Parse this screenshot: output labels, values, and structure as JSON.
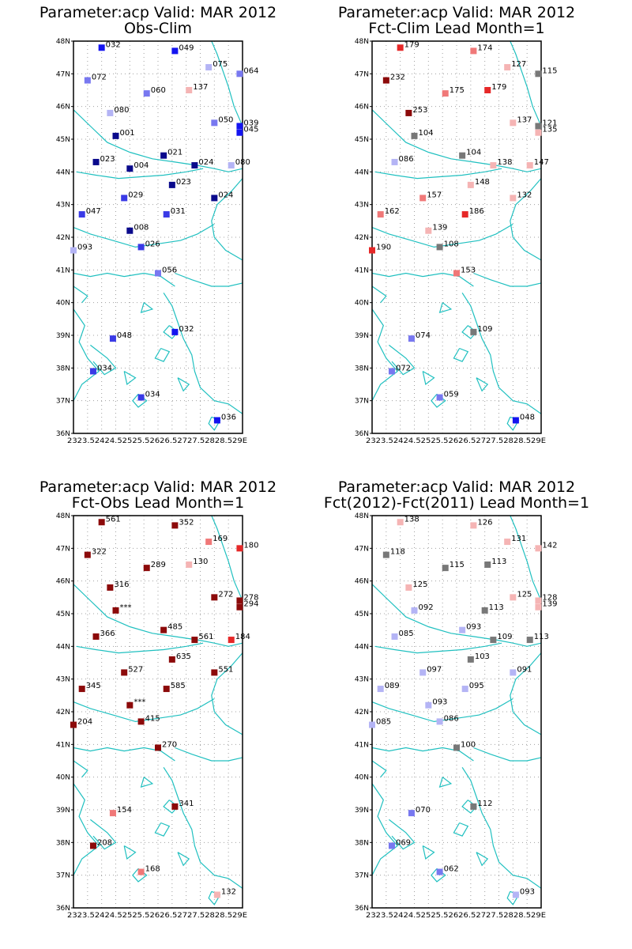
{
  "colors": {
    "coast": "#20c0c0",
    "grid": "#a0a0a0",
    "frame": "#000000",
    "levels": {
      "dark_blue": "#0a0a8c",
      "blue": "#1414f0",
      "mid_blue": "#3a3ae6",
      "light_blue": "#7878f0",
      "pale_blue": "#b4b4f5",
      "gray": "#787878",
      "pale_red": "#f5b4b4",
      "light_red": "#f07878",
      "red": "#e62828",
      "dark_red": "#8c0a0a"
    }
  },
  "axes": {
    "lon_range": [
      23,
      29
    ],
    "lat_range": [
      36,
      48
    ],
    "lat_ticks": [
      "36N",
      "37N",
      "38N",
      "39N",
      "40N",
      "41N",
      "42N",
      "43N",
      "44N",
      "45N",
      "46N",
      "47N",
      "48N"
    ],
    "lon_tick_text": "2323.52424.52525.52626.52727.52828.529E"
  },
  "panels": [
    {
      "title1": "Parameter:acp Valid: MAR 2012",
      "title2": "Obs-Clim",
      "stations": [
        {
          "lon": 24.0,
          "lat": 47.8,
          "label": "032",
          "color": "blue"
        },
        {
          "lon": 26.6,
          "lat": 47.7,
          "label": "049",
          "color": "blue"
        },
        {
          "lon": 27.8,
          "lat": 47.2,
          "label": "075",
          "color": "pale_blue"
        },
        {
          "lon": 28.9,
          "lat": 47.0,
          "label": "064",
          "color": "light_blue"
        },
        {
          "lon": 23.5,
          "lat": 46.8,
          "label": "072",
          "color": "light_blue"
        },
        {
          "lon": 27.1,
          "lat": 46.5,
          "label": "137",
          "color": "pale_red"
        },
        {
          "lon": 25.6,
          "lat": 46.4,
          "label": "060",
          "color": "light_blue"
        },
        {
          "lon": 24.3,
          "lat": 45.8,
          "label": "080",
          "color": "pale_blue"
        },
        {
          "lon": 28.0,
          "lat": 45.5,
          "label": "050",
          "color": "light_blue"
        },
        {
          "lon": 28.9,
          "lat": 45.4,
          "label": "039",
          "color": "blue"
        },
        {
          "lon": 28.9,
          "lat": 45.2,
          "label": "045",
          "color": "blue"
        },
        {
          "lon": 24.5,
          "lat": 45.1,
          "label": "001",
          "color": "dark_blue"
        },
        {
          "lon": 26.2,
          "lat": 44.5,
          "label": "021",
          "color": "dark_blue"
        },
        {
          "lon": 23.8,
          "lat": 44.3,
          "label": "023",
          "color": "dark_blue"
        },
        {
          "lon": 25.0,
          "lat": 44.1,
          "label": "004",
          "color": "dark_blue"
        },
        {
          "lon": 27.3,
          "lat": 44.2,
          "label": "024",
          "color": "dark_blue"
        },
        {
          "lon": 28.6,
          "lat": 44.2,
          "label": "080",
          "color": "pale_blue"
        },
        {
          "lon": 26.5,
          "lat": 43.6,
          "label": "023",
          "color": "dark_blue"
        },
        {
          "lon": 24.8,
          "lat": 43.2,
          "label": "029",
          "color": "mid_blue"
        },
        {
          "lon": 28.0,
          "lat": 43.2,
          "label": "024",
          "color": "dark_blue"
        },
        {
          "lon": 23.3,
          "lat": 42.7,
          "label": "047",
          "color": "mid_blue"
        },
        {
          "lon": 26.3,
          "lat": 42.7,
          "label": "031",
          "color": "mid_blue"
        },
        {
          "lon": 25.0,
          "lat": 42.2,
          "label": "008",
          "color": "dark_blue"
        },
        {
          "lon": 25.4,
          "lat": 41.7,
          "label": "026",
          "color": "mid_blue"
        },
        {
          "lon": 23.0,
          "lat": 41.6,
          "label": "093",
          "color": "pale_blue"
        },
        {
          "lon": 26.0,
          "lat": 40.9,
          "label": "056",
          "color": "light_blue"
        },
        {
          "lon": 26.6,
          "lat": 39.1,
          "label": "032",
          "color": "blue"
        },
        {
          "lon": 24.4,
          "lat": 38.9,
          "label": "048",
          "color": "mid_blue"
        },
        {
          "lon": 23.7,
          "lat": 37.9,
          "label": "034",
          "color": "mid_blue"
        },
        {
          "lon": 25.4,
          "lat": 37.1,
          "label": "034",
          "color": "mid_blue"
        },
        {
          "lon": 28.1,
          "lat": 36.4,
          "label": "036",
          "color": "blue"
        }
      ]
    },
    {
      "title1": "Parameter:acp Valid: MAR 2012",
      "title2": "Fct-Clim Lead Month=1",
      "stations": [
        {
          "lon": 24.0,
          "lat": 47.8,
          "label": "179",
          "color": "red"
        },
        {
          "lon": 26.6,
          "lat": 47.7,
          "label": "174",
          "color": "light_red"
        },
        {
          "lon": 27.8,
          "lat": 47.2,
          "label": "127",
          "color": "pale_red"
        },
        {
          "lon": 28.9,
          "lat": 47.0,
          "label": "115",
          "color": "gray"
        },
        {
          "lon": 23.5,
          "lat": 46.8,
          "label": "232",
          "color": "dark_red"
        },
        {
          "lon": 27.1,
          "lat": 46.5,
          "label": "179",
          "color": "red"
        },
        {
          "lon": 25.6,
          "lat": 46.4,
          "label": "175",
          "color": "light_red"
        },
        {
          "lon": 24.3,
          "lat": 45.8,
          "label": "253",
          "color": "dark_red"
        },
        {
          "lon": 28.0,
          "lat": 45.5,
          "label": "137",
          "color": "pale_red"
        },
        {
          "lon": 28.9,
          "lat": 45.4,
          "label": "121",
          "color": "gray"
        },
        {
          "lon": 28.9,
          "lat": 45.2,
          "label": "135",
          "color": "pale_red"
        },
        {
          "lon": 24.5,
          "lat": 45.1,
          "label": "104",
          "color": "gray"
        },
        {
          "lon": 26.2,
          "lat": 44.5,
          "label": "104",
          "color": "gray"
        },
        {
          "lon": 23.8,
          "lat": 44.3,
          "label": "086",
          "color": "pale_blue"
        },
        {
          "lon": 27.3,
          "lat": 44.2,
          "label": "138",
          "color": "pale_red"
        },
        {
          "lon": 28.6,
          "lat": 44.2,
          "label": "147",
          "color": "pale_red"
        },
        {
          "lon": 26.5,
          "lat": 43.6,
          "label": "148",
          "color": "pale_red"
        },
        {
          "lon": 24.8,
          "lat": 43.2,
          "label": "157",
          "color": "light_red"
        },
        {
          "lon": 28.0,
          "lat": 43.2,
          "label": "132",
          "color": "pale_red"
        },
        {
          "lon": 23.3,
          "lat": 42.7,
          "label": "162",
          "color": "light_red"
        },
        {
          "lon": 26.3,
          "lat": 42.7,
          "label": "186",
          "color": "red"
        },
        {
          "lon": 25.0,
          "lat": 42.2,
          "label": "139",
          "color": "pale_red"
        },
        {
          "lon": 25.4,
          "lat": 41.7,
          "label": "108",
          "color": "gray"
        },
        {
          "lon": 23.0,
          "lat": 41.6,
          "label": "190",
          "color": "red"
        },
        {
          "lon": 26.0,
          "lat": 40.9,
          "label": "153",
          "color": "light_red"
        },
        {
          "lon": 26.6,
          "lat": 39.1,
          "label": "109",
          "color": "gray"
        },
        {
          "lon": 24.4,
          "lat": 38.9,
          "label": "074",
          "color": "light_blue"
        },
        {
          "lon": 23.7,
          "lat": 37.9,
          "label": "072",
          "color": "light_blue"
        },
        {
          "lon": 25.4,
          "lat": 37.1,
          "label": "059",
          "color": "light_blue"
        },
        {
          "lon": 28.1,
          "lat": 36.4,
          "label": "048",
          "color": "blue"
        }
      ]
    },
    {
      "title1": "Parameter:acp Valid: MAR 2012",
      "title2": "Fct-Obs Lead Month=1",
      "stations": [
        {
          "lon": 24.0,
          "lat": 47.8,
          "label": "561",
          "color": "dark_red"
        },
        {
          "lon": 26.6,
          "lat": 47.7,
          "label": "352",
          "color": "dark_red"
        },
        {
          "lon": 27.8,
          "lat": 47.2,
          "label": "169",
          "color": "light_red"
        },
        {
          "lon": 28.9,
          "lat": 47.0,
          "label": "180",
          "color": "red"
        },
        {
          "lon": 23.5,
          "lat": 46.8,
          "label": "322",
          "color": "dark_red"
        },
        {
          "lon": 27.1,
          "lat": 46.5,
          "label": "130",
          "color": "pale_red"
        },
        {
          "lon": 25.6,
          "lat": 46.4,
          "label": "289",
          "color": "dark_red"
        },
        {
          "lon": 24.3,
          "lat": 45.8,
          "label": "316",
          "color": "dark_red"
        },
        {
          "lon": 28.0,
          "lat": 45.5,
          "label": "272",
          "color": "dark_red"
        },
        {
          "lon": 28.9,
          "lat": 45.4,
          "label": "278",
          "color": "dark_red"
        },
        {
          "lon": 28.9,
          "lat": 45.2,
          "label": "294",
          "color": "dark_red"
        },
        {
          "lon": 24.5,
          "lat": 45.1,
          "label": "***",
          "color": "dark_red"
        },
        {
          "lon": 26.2,
          "lat": 44.5,
          "label": "485",
          "color": "dark_red"
        },
        {
          "lon": 23.8,
          "lat": 44.3,
          "label": "366",
          "color": "dark_red"
        },
        {
          "lon": 27.3,
          "lat": 44.2,
          "label": "561",
          "color": "dark_red"
        },
        {
          "lon": 28.6,
          "lat": 44.2,
          "label": "184",
          "color": "red"
        },
        {
          "lon": 26.5,
          "lat": 43.6,
          "label": "635",
          "color": "dark_red"
        },
        {
          "lon": 24.8,
          "lat": 43.2,
          "label": "527",
          "color": "dark_red"
        },
        {
          "lon": 28.0,
          "lat": 43.2,
          "label": "551",
          "color": "dark_red"
        },
        {
          "lon": 23.3,
          "lat": 42.7,
          "label": "345",
          "color": "dark_red"
        },
        {
          "lon": 26.3,
          "lat": 42.7,
          "label": "585",
          "color": "dark_red"
        },
        {
          "lon": 25.0,
          "lat": 42.2,
          "label": "***",
          "color": "dark_red"
        },
        {
          "lon": 25.4,
          "lat": 41.7,
          "label": "415",
          "color": "dark_red"
        },
        {
          "lon": 23.0,
          "lat": 41.6,
          "label": "204",
          "color": "dark_red"
        },
        {
          "lon": 26.0,
          "lat": 40.9,
          "label": "270",
          "color": "dark_red"
        },
        {
          "lon": 26.6,
          "lat": 39.1,
          "label": "341",
          "color": "dark_red"
        },
        {
          "lon": 24.4,
          "lat": 38.9,
          "label": "154",
          "color": "light_red"
        },
        {
          "lon": 23.7,
          "lat": 37.9,
          "label": "208",
          "color": "dark_red"
        },
        {
          "lon": 25.4,
          "lat": 37.1,
          "label": "168",
          "color": "light_red"
        },
        {
          "lon": 28.1,
          "lat": 36.4,
          "label": "132",
          "color": "pale_red"
        }
      ]
    },
    {
      "title1": "Parameter:acp Valid: MAR 2012",
      "title2": "Fct(2012)-Fct(2011) Lead Month=1",
      "stations": [
        {
          "lon": 24.0,
          "lat": 47.8,
          "label": "138",
          "color": "pale_red"
        },
        {
          "lon": 26.6,
          "lat": 47.7,
          "label": "126",
          "color": "pale_red"
        },
        {
          "lon": 27.8,
          "lat": 47.2,
          "label": "131",
          "color": "pale_red"
        },
        {
          "lon": 28.9,
          "lat": 47.0,
          "label": "142",
          "color": "pale_red"
        },
        {
          "lon": 23.5,
          "lat": 46.8,
          "label": "118",
          "color": "gray"
        },
        {
          "lon": 27.1,
          "lat": 46.5,
          "label": "113",
          "color": "gray"
        },
        {
          "lon": 25.6,
          "lat": 46.4,
          "label": "115",
          "color": "gray"
        },
        {
          "lon": 24.3,
          "lat": 45.8,
          "label": "125",
          "color": "pale_red"
        },
        {
          "lon": 28.0,
          "lat": 45.5,
          "label": "125",
          "color": "pale_red"
        },
        {
          "lon": 28.9,
          "lat": 45.4,
          "label": "128",
          "color": "pale_red"
        },
        {
          "lon": 28.9,
          "lat": 45.2,
          "label": "139",
          "color": "pale_red"
        },
        {
          "lon": 24.5,
          "lat": 45.1,
          "label": "092",
          "color": "pale_blue"
        },
        {
          "lon": 27.0,
          "lat": 45.1,
          "label": "113",
          "color": "gray"
        },
        {
          "lon": 26.2,
          "lat": 44.5,
          "label": "093",
          "color": "pale_blue"
        },
        {
          "lon": 23.8,
          "lat": 44.3,
          "label": "085",
          "color": "pale_blue"
        },
        {
          "lon": 27.3,
          "lat": 44.2,
          "label": "109",
          "color": "gray"
        },
        {
          "lon": 28.6,
          "lat": 44.2,
          "label": "113",
          "color": "gray"
        },
        {
          "lon": 26.5,
          "lat": 43.6,
          "label": "103",
          "color": "gray"
        },
        {
          "lon": 24.8,
          "lat": 43.2,
          "label": "097",
          "color": "pale_blue"
        },
        {
          "lon": 28.0,
          "lat": 43.2,
          "label": "091",
          "color": "pale_blue"
        },
        {
          "lon": 23.3,
          "lat": 42.7,
          "label": "089",
          "color": "pale_blue"
        },
        {
          "lon": 26.3,
          "lat": 42.7,
          "label": "095",
          "color": "pale_blue"
        },
        {
          "lon": 25.0,
          "lat": 42.2,
          "label": "093",
          "color": "pale_blue"
        },
        {
          "lon": 25.4,
          "lat": 41.7,
          "label": "086",
          "color": "pale_blue"
        },
        {
          "lon": 23.0,
          "lat": 41.6,
          "label": "085",
          "color": "pale_blue"
        },
        {
          "lon": 26.0,
          "lat": 40.9,
          "label": "100",
          "color": "gray"
        },
        {
          "lon": 26.6,
          "lat": 39.1,
          "label": "112",
          "color": "gray"
        },
        {
          "lon": 24.4,
          "lat": 38.9,
          "label": "070",
          "color": "light_blue"
        },
        {
          "lon": 23.7,
          "lat": 37.9,
          "label": "069",
          "color": "light_blue"
        },
        {
          "lon": 25.4,
          "lat": 37.1,
          "label": "062",
          "color": "light_blue"
        },
        {
          "lon": 28.1,
          "lat": 36.4,
          "label": "093",
          "color": "pale_blue"
        }
      ]
    }
  ]
}
